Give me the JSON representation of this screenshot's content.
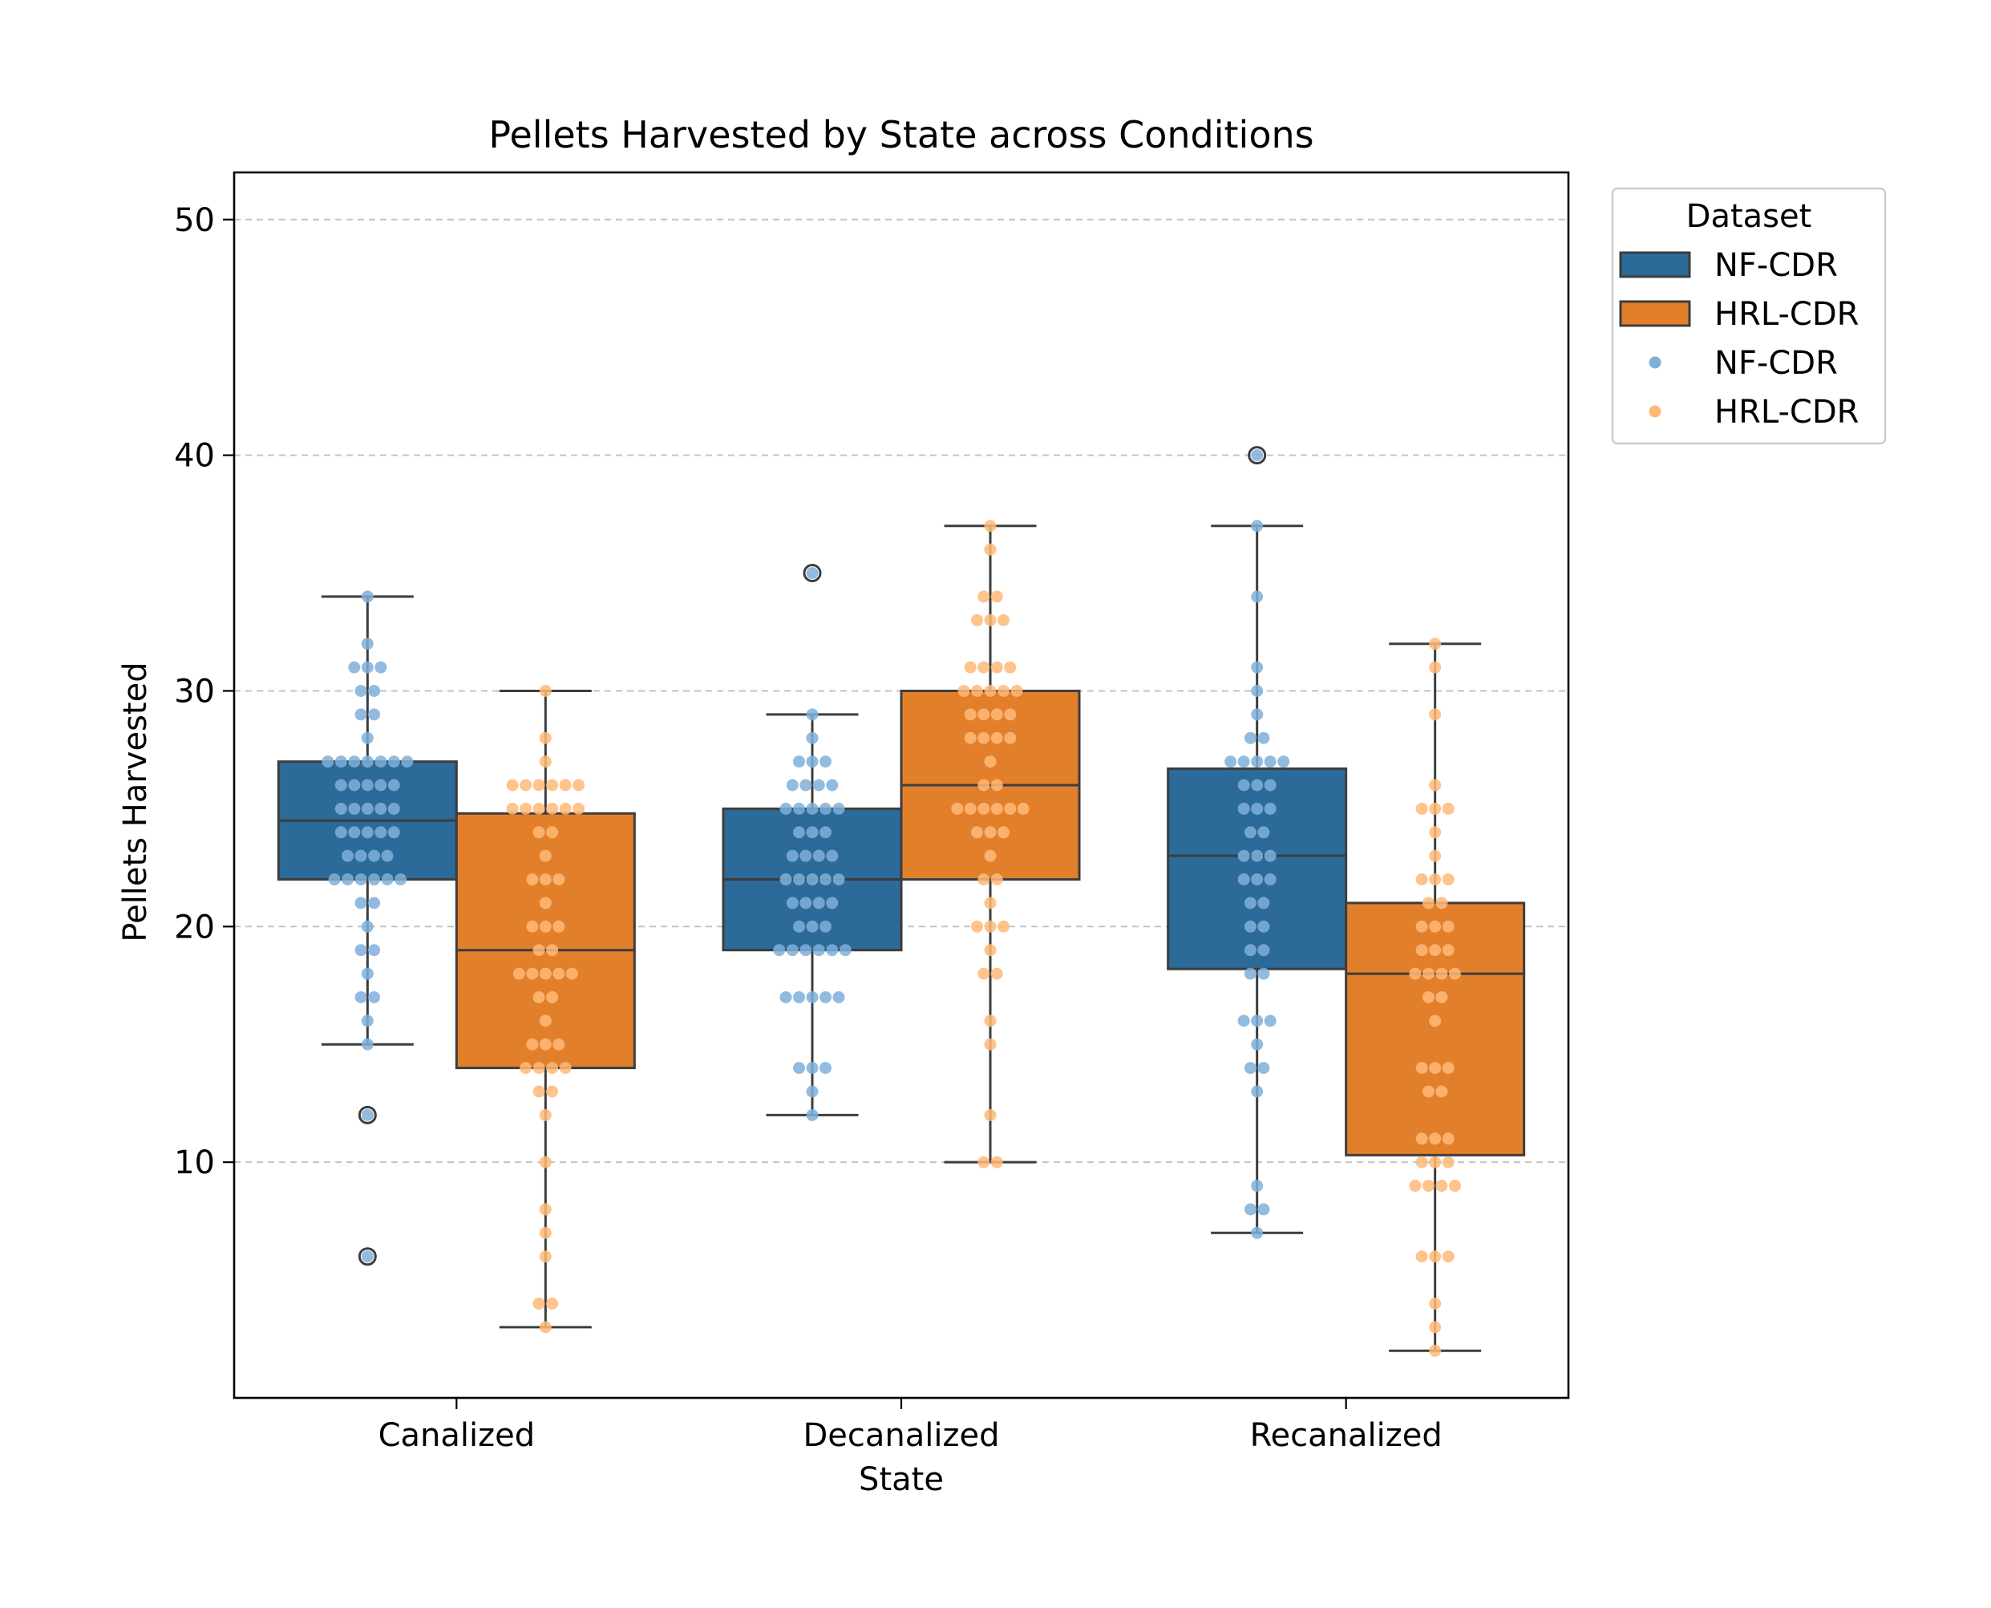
{
  "chart_data": {
    "type": "box",
    "title": "Pellets Harvested by State across Conditions",
    "xlabel": "State",
    "ylabel": "Pellets Harvested",
    "ylim": [
      0,
      52
    ],
    "yticks": [
      10,
      20,
      30,
      40,
      50
    ],
    "grid": "y-dashed",
    "legend_title": "Dataset",
    "legend_placement": "outside-top-right",
    "legend_entries": [
      {
        "label": "NF-CDR",
        "kind": "box",
        "color": "#2b6a99"
      },
      {
        "label": "HRL-CDR",
        "kind": "box",
        "color": "#e17f2b"
      },
      {
        "label": "NF-CDR",
        "kind": "point",
        "color": "#7fb0d9"
      },
      {
        "label": "HRL-CDR",
        "kind": "point",
        "color": "#ffb878"
      }
    ],
    "categories": [
      "Canalized",
      "Decanalized",
      "Recanalized"
    ],
    "series": [
      {
        "name": "NF-CDR",
        "box_color": "#2b6a99",
        "point_color": "#7fb0d9",
        "boxes": [
          {
            "whislo": 15,
            "q1": 22,
            "med": 24.5,
            "q3": 27,
            "whishi": 34,
            "fliers": [
              12,
              6
            ]
          },
          {
            "whislo": 12,
            "q1": 19,
            "med": 22,
            "q3": 25,
            "whishi": 29,
            "fliers": [
              35
            ]
          },
          {
            "whislo": 7,
            "q1": 18.2,
            "med": 23,
            "q3": 26.7,
            "whishi": 37,
            "fliers": [
              40
            ]
          }
        ],
        "points": [
          [
            34,
            32,
            31,
            31,
            31,
            30,
            30,
            29,
            29,
            28,
            27,
            27,
            27,
            27,
            27,
            27,
            27,
            26,
            26,
            26,
            26,
            26,
            25,
            25,
            25,
            25,
            25,
            24,
            24,
            24,
            24,
            24,
            23,
            23,
            23,
            23,
            22,
            22,
            22,
            22,
            22,
            22,
            21,
            21,
            20,
            19,
            19,
            18,
            17,
            17,
            16,
            15,
            12,
            6
          ],
          [
            35,
            29,
            28,
            27,
            27,
            27,
            26,
            26,
            26,
            26,
            25,
            25,
            25,
            25,
            25,
            24,
            24,
            24,
            23,
            23,
            23,
            23,
            22,
            22,
            22,
            22,
            22,
            21,
            21,
            21,
            21,
            20,
            20,
            20,
            19,
            19,
            19,
            19,
            19,
            19,
            17,
            17,
            17,
            17,
            17,
            14,
            14,
            14,
            13,
            12
          ],
          [
            40,
            37,
            34,
            31,
            30,
            29,
            28,
            28,
            27,
            27,
            27,
            27,
            27,
            26,
            26,
            26,
            25,
            25,
            25,
            24,
            24,
            23,
            23,
            23,
            22,
            22,
            22,
            21,
            21,
            20,
            20,
            19,
            19,
            18,
            18,
            16,
            16,
            16,
            15,
            14,
            14,
            13,
            9,
            8,
            8,
            7
          ]
        ]
      },
      {
        "name": "HRL-CDR",
        "box_color": "#e17f2b",
        "point_color": "#ffb878",
        "boxes": [
          {
            "whislo": 3,
            "q1": 14,
            "med": 19,
            "q3": 24.8,
            "whishi": 30,
            "fliers": []
          },
          {
            "whislo": 10,
            "q1": 22,
            "med": 26,
            "q3": 30,
            "whishi": 37,
            "fliers": []
          },
          {
            "whislo": 2,
            "q1": 10.3,
            "med": 18,
            "q3": 21,
            "whishi": 32,
            "fliers": []
          }
        ],
        "points": [
          [
            30,
            28,
            27,
            26,
            26,
            26,
            26,
            26,
            26,
            25,
            25,
            25,
            25,
            25,
            25,
            24,
            24,
            23,
            22,
            22,
            22,
            21,
            20,
            20,
            20,
            19,
            19,
            18,
            18,
            18,
            18,
            18,
            17,
            17,
            16,
            15,
            15,
            15,
            14,
            14,
            14,
            14,
            13,
            13,
            12,
            10,
            8,
            7,
            6,
            4,
            4,
            3
          ],
          [
            37,
            36,
            34,
            34,
            33,
            33,
            33,
            31,
            31,
            31,
            31,
            30,
            30,
            30,
            30,
            30,
            29,
            29,
            29,
            29,
            28,
            28,
            28,
            28,
            27,
            26,
            26,
            25,
            25,
            25,
            25,
            25,
            25,
            24,
            24,
            24,
            23,
            22,
            22,
            21,
            20,
            20,
            20,
            19,
            18,
            18,
            16,
            15,
            12,
            10,
            10
          ],
          [
            32,
            31,
            29,
            26,
            25,
            25,
            25,
            24,
            23,
            22,
            22,
            22,
            21,
            21,
            20,
            20,
            20,
            19,
            19,
            19,
            18,
            18,
            18,
            18,
            17,
            17,
            16,
            14,
            14,
            14,
            13,
            13,
            11,
            11,
            11,
            10,
            10,
            10,
            9,
            9,
            9,
            9,
            6,
            6,
            6,
            4,
            3,
            2
          ]
        ]
      }
    ]
  }
}
